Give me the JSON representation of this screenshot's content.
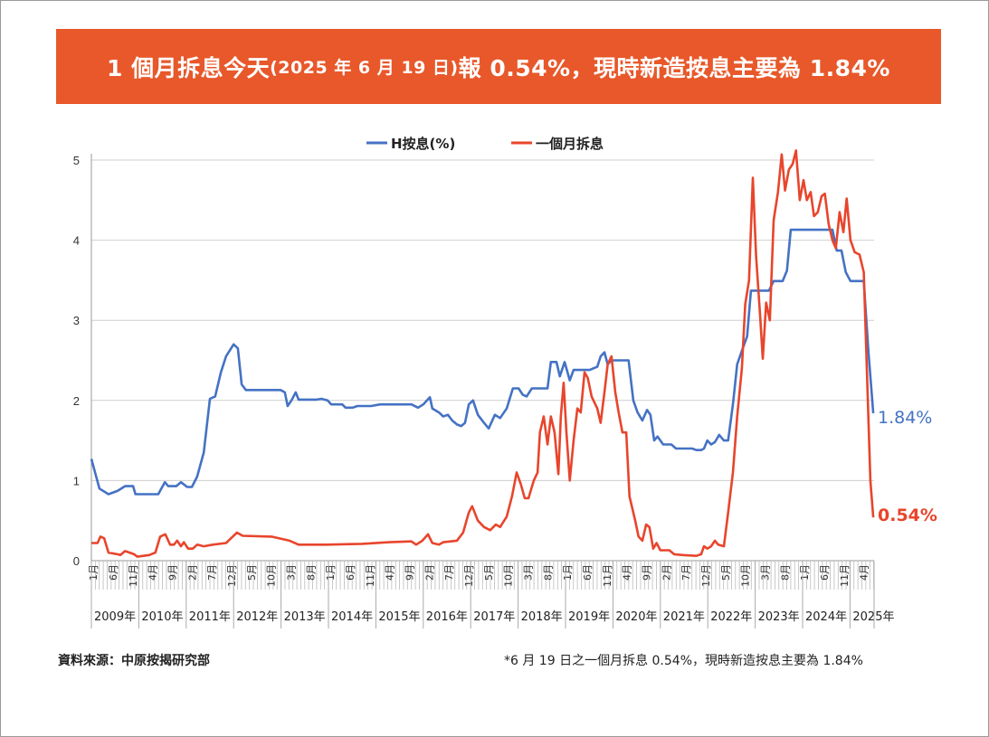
{
  "title": {
    "part1": "1 個月拆息今天",
    "part2": "(2025 年 6 月 19 日)",
    "part3": "報 0.54%，現時新造按息主要為 1.84%",
    "bg_color": "#E8582A"
  },
  "footer": {
    "source": "資料來源：中原按揭研究部",
    "note": "*6 月 19 日之一個月拆息 0.54%，現時新造按息主要為 1.84%"
  },
  "chart_data": {
    "type": "line",
    "title": "",
    "xlabel": "",
    "ylabel": "",
    "ylim": [
      0,
      5.5
    ],
    "yticks": [
      "0",
      "1",
      "2",
      "3",
      "4",
      "5"
    ],
    "grid": true,
    "legend_position": "top-center",
    "x_month_ticks": [
      "1月",
      "6月",
      "11月",
      "4月",
      "9月",
      "2月",
      "7月",
      "12月",
      "5月",
      "10月",
      "3月",
      "8月",
      "1月",
      "6月",
      "11月",
      "4月",
      "9月",
      "2月",
      "7月",
      "12月",
      "5月",
      "10月",
      "3月",
      "8月",
      "1月",
      "6月",
      "11月",
      "4月",
      "9月",
      "2月",
      "7月",
      "12月",
      "5月",
      "10月",
      "3月",
      "8月",
      "1月",
      "6月",
      "11月",
      "4月"
    ],
    "x_years": [
      "2009年",
      "2010年",
      "2011年",
      "2012年",
      "2013年",
      "2014年",
      "2015年",
      "2016年",
      "2017年",
      "2018年",
      "2019年",
      "2020年",
      "2021年",
      "2022年",
      "2023年",
      "2024年",
      "2025年"
    ],
    "series": [
      {
        "name": "H按息(%)",
        "color": "#4472C4",
        "end_label": "1.84%",
        "x": [
          2009.0,
          2009.17,
          2009.36,
          2009.55,
          2009.71,
          2009.88,
          2009.93,
          2010.41,
          2010.55,
          2010.62,
          2010.79,
          2010.89,
          2011.02,
          2011.12,
          2011.23,
          2011.37,
          2011.5,
          2011.61,
          2011.73,
          2011.84,
          2012.0,
          2012.09,
          2012.17,
          2012.26,
          2012.99,
          2013.08,
          2013.14,
          2013.22,
          2013.31,
          2013.37,
          2013.75,
          2013.85,
          2013.98,
          2014.06,
          2014.29,
          2014.36,
          2014.51,
          2014.61,
          2014.9,
          2015.09,
          2015.75,
          2015.89,
          2016.0,
          2016.14,
          2016.19,
          2016.33,
          2016.42,
          2016.52,
          2016.61,
          2016.71,
          2016.8,
          2016.88,
          2016.96,
          2017.05,
          2017.15,
          2017.28,
          2017.38,
          2017.51,
          2017.62,
          2017.76,
          2017.89,
          2018.01,
          2018.1,
          2018.18,
          2018.29,
          2018.62,
          2018.69,
          2018.81,
          2018.88,
          2018.98,
          2019.09,
          2019.17,
          2019.51,
          2019.67,
          2019.74,
          2019.82,
          2019.89,
          2019.97,
          2020.33,
          2020.43,
          2020.52,
          2020.62,
          2020.72,
          2020.79,
          2020.87,
          2020.94,
          2021.06,
          2021.23,
          2021.33,
          2021.67,
          2021.76,
          2021.86,
          2021.92,
          2021.99,
          2022.07,
          2022.15,
          2022.24,
          2022.34,
          2022.43,
          2022.53,
          2022.62,
          2022.72,
          2022.83,
          2022.91,
          2023.29,
          2023.39,
          2023.58,
          2023.67,
          2023.75,
          2024.63,
          2024.72,
          2024.82,
          2024.91,
          2025.01,
          2025.29,
          2025.39,
          2025.49
        ],
        "y": [
          1.27,
          0.9,
          0.83,
          0.87,
          0.93,
          0.93,
          0.83,
          0.83,
          0.98,
          0.93,
          0.93,
          0.98,
          0.92,
          0.92,
          1.05,
          1.35,
          2.02,
          2.05,
          2.35,
          2.55,
          2.7,
          2.65,
          2.2,
          2.13,
          2.13,
          2.1,
          1.93,
          2.0,
          2.1,
          2.01,
          2.01,
          2.02,
          2.0,
          1.95,
          1.95,
          1.91,
          1.91,
          1.93,
          1.93,
          1.95,
          1.95,
          1.91,
          1.95,
          2.04,
          1.9,
          1.85,
          1.8,
          1.82,
          1.75,
          1.7,
          1.68,
          1.72,
          1.95,
          2.0,
          1.82,
          1.72,
          1.65,
          1.82,
          1.78,
          1.9,
          2.15,
          2.15,
          2.07,
          2.05,
          2.15,
          2.15,
          2.48,
          2.48,
          2.3,
          2.48,
          2.25,
          2.38,
          2.38,
          2.42,
          2.55,
          2.6,
          2.45,
          2.5,
          2.5,
          2.0,
          1.85,
          1.75,
          1.88,
          1.82,
          1.5,
          1.55,
          1.45,
          1.45,
          1.4,
          1.4,
          1.38,
          1.38,
          1.4,
          1.5,
          1.45,
          1.48,
          1.57,
          1.5,
          1.5,
          1.95,
          2.45,
          2.62,
          2.8,
          3.37,
          3.37,
          3.49,
          3.49,
          3.62,
          4.13,
          4.13,
          3.87,
          3.87,
          3.6,
          3.49,
          3.49,
          2.6,
          1.84
        ]
      },
      {
        "name": "一個月拆息",
        "color": "#E8452C",
        "end_label": "0.54%",
        "x": [
          2009.0,
          2009.13,
          2009.19,
          2009.27,
          2009.36,
          2009.55,
          2009.61,
          2009.71,
          2009.9,
          2009.97,
          2010.22,
          2010.35,
          2010.45,
          2010.56,
          2010.66,
          2010.74,
          2010.81,
          2010.89,
          2010.95,
          2011.04,
          2011.14,
          2011.23,
          2011.37,
          2011.56,
          2011.84,
          2011.98,
          2012.07,
          2012.19,
          2012.8,
          2013.18,
          2013.37,
          2013.94,
          2014.71,
          2015.28,
          2015.75,
          2015.85,
          2015.98,
          2016.1,
          2016.19,
          2016.33,
          2016.42,
          2016.71,
          2016.84,
          2016.96,
          2017.03,
          2017.15,
          2017.28,
          2017.41,
          2017.53,
          2017.62,
          2017.76,
          2017.87,
          2017.97,
          2018.06,
          2018.14,
          2018.22,
          2018.33,
          2018.41,
          2018.46,
          2018.54,
          2018.62,
          2018.69,
          2018.77,
          2018.85,
          2018.9,
          2018.96,
          2019.02,
          2019.09,
          2019.17,
          2019.25,
          2019.32,
          2019.4,
          2019.47,
          2019.55,
          2019.67,
          2019.74,
          2019.82,
          2019.89,
          2019.97,
          2020.05,
          2020.12,
          2020.2,
          2020.28,
          2020.35,
          2020.47,
          2020.54,
          2020.62,
          2020.7,
          2020.77,
          2020.85,
          2020.92,
          2021.0,
          2021.19,
          2021.29,
          2021.48,
          2021.76,
          2021.86,
          2021.92,
          2021.99,
          2022.07,
          2022.15,
          2022.22,
          2022.34,
          2022.43,
          2022.53,
          2022.62,
          2022.72,
          2022.79,
          2022.87,
          2022.95,
          2023.02,
          2023.1,
          2023.16,
          2023.23,
          2023.31,
          2023.39,
          2023.48,
          2023.56,
          2023.63,
          2023.71,
          2023.79,
          2023.86,
          2023.94,
          2024.02,
          2024.09,
          2024.17,
          2024.24,
          2024.32,
          2024.4,
          2024.47,
          2024.55,
          2024.63,
          2024.7,
          2024.78,
          2024.86,
          2024.93,
          2025.01,
          2025.1,
          2025.2,
          2025.29,
          2025.35,
          2025.43,
          2025.49
        ],
        "y": [
          0.22,
          0.22,
          0.3,
          0.28,
          0.1,
          0.08,
          0.07,
          0.12,
          0.08,
          0.05,
          0.07,
          0.1,
          0.3,
          0.33,
          0.2,
          0.2,
          0.25,
          0.18,
          0.23,
          0.15,
          0.15,
          0.2,
          0.18,
          0.2,
          0.22,
          0.3,
          0.35,
          0.31,
          0.3,
          0.25,
          0.2,
          0.2,
          0.21,
          0.23,
          0.24,
          0.2,
          0.25,
          0.33,
          0.22,
          0.2,
          0.23,
          0.25,
          0.35,
          0.6,
          0.68,
          0.5,
          0.42,
          0.38,
          0.45,
          0.42,
          0.55,
          0.8,
          1.1,
          0.95,
          0.78,
          0.78,
          1.0,
          1.1,
          1.6,
          1.8,
          1.45,
          1.8,
          1.6,
          1.08,
          1.8,
          2.22,
          1.6,
          1.0,
          1.5,
          1.9,
          1.85,
          2.35,
          2.28,
          2.05,
          1.9,
          1.72,
          2.1,
          2.45,
          2.55,
          2.1,
          1.85,
          1.6,
          1.6,
          0.8,
          0.5,
          0.3,
          0.25,
          0.45,
          0.42,
          0.15,
          0.22,
          0.13,
          0.13,
          0.08,
          0.07,
          0.06,
          0.08,
          0.18,
          0.15,
          0.18,
          0.25,
          0.2,
          0.18,
          0.6,
          1.1,
          1.8,
          2.4,
          3.2,
          3.5,
          4.78,
          3.8,
          3.1,
          2.52,
          3.22,
          3.0,
          4.25,
          4.6,
          5.07,
          4.62,
          4.88,
          4.95,
          5.12,
          4.5,
          4.75,
          4.5,
          4.6,
          4.3,
          4.35,
          4.55,
          4.58,
          4.2,
          4.0,
          3.9,
          4.35,
          4.1,
          4.52,
          4.0,
          3.85,
          3.82,
          3.6,
          2.5,
          1.0,
          0.54
        ]
      }
    ]
  }
}
